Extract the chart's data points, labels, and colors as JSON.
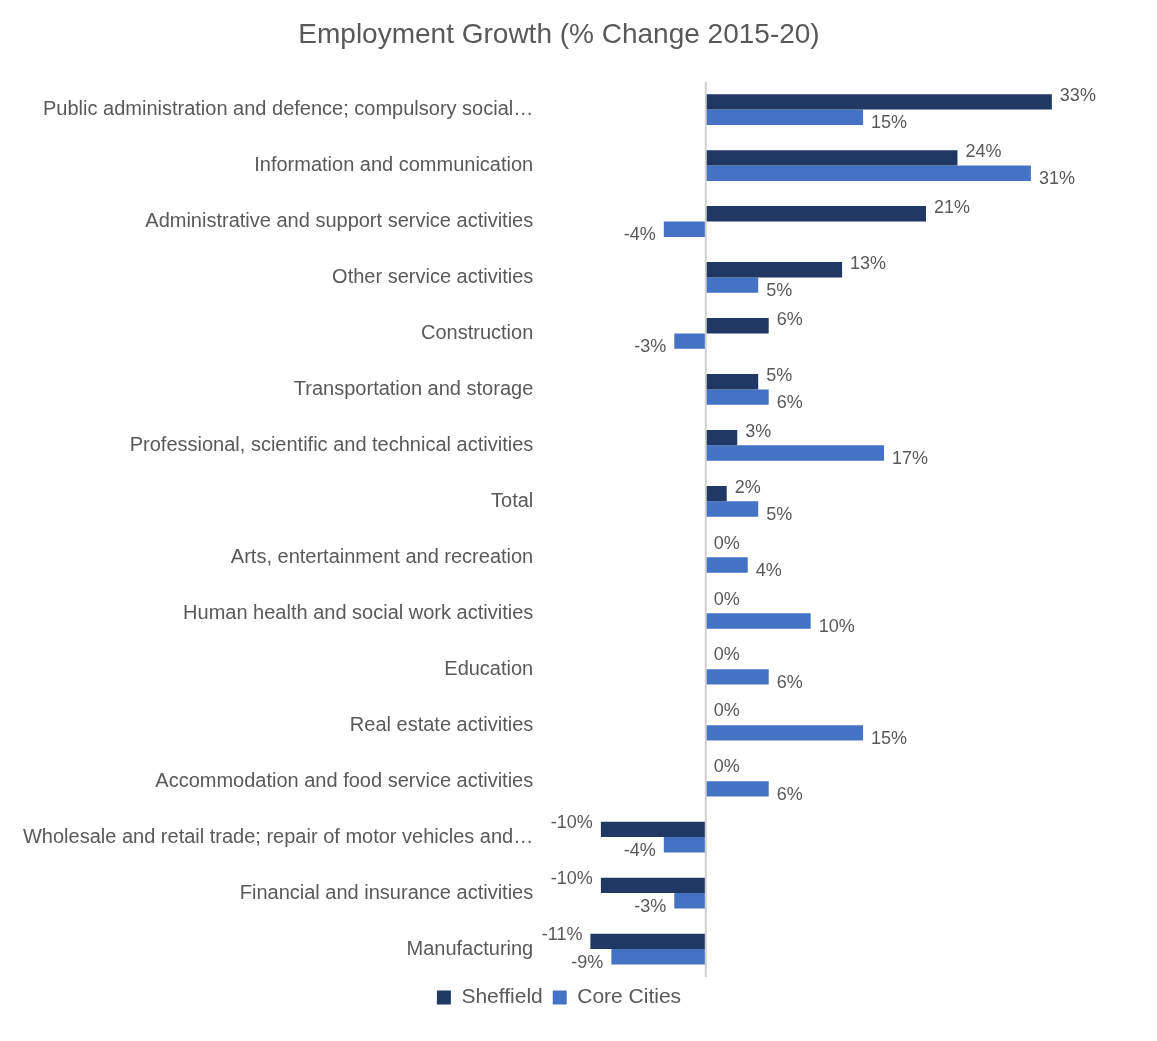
{
  "chart_data": {
    "type": "bar",
    "orientation": "horizontal",
    "title": "Employment Growth (% Change 2015-20)",
    "categories": [
      "Public administration and defence; compulsory social…",
      "Information and communication",
      "Administrative and support service activities",
      "Other service activities",
      "Construction",
      "Transportation and storage",
      "Professional, scientific and technical activities",
      "Total",
      "Arts, entertainment and recreation",
      "Human health and social work activities",
      "Education",
      "Real estate activities",
      "Accommodation and food service activities",
      "Wholesale and retail trade; repair of motor vehicles and…",
      "Financial and insurance activities",
      "Manufacturing"
    ],
    "series": [
      {
        "name": "Sheffield",
        "color": "#203864",
        "values": [
          33,
          24,
          21,
          13,
          6,
          5,
          3,
          2,
          0,
          0,
          0,
          0,
          0,
          -10,
          -10,
          -11
        ],
        "value_labels": [
          "33%",
          "24%",
          "21%",
          "13%",
          "6%",
          "5%",
          "3%",
          "2%",
          "0%",
          "0%",
          "0%",
          "0%",
          "0%",
          "-10%",
          "-10%",
          "-11%"
        ]
      },
      {
        "name": "Core Cities",
        "color": "#4472c4",
        "values": [
          15,
          31,
          -4,
          5,
          -3,
          6,
          17,
          5,
          4,
          10,
          6,
          15,
          6,
          -4,
          -3,
          -9
        ],
        "value_labels": [
          "15%",
          "31%",
          "-4%",
          "5%",
          "-3%",
          "6%",
          "17%",
          "5%",
          "4%",
          "10%",
          "6%",
          "15%",
          "6%",
          "-4%",
          "-3%",
          "-9%"
        ]
      }
    ],
    "legend": "bottom",
    "tick_labels": "y"
  }
}
